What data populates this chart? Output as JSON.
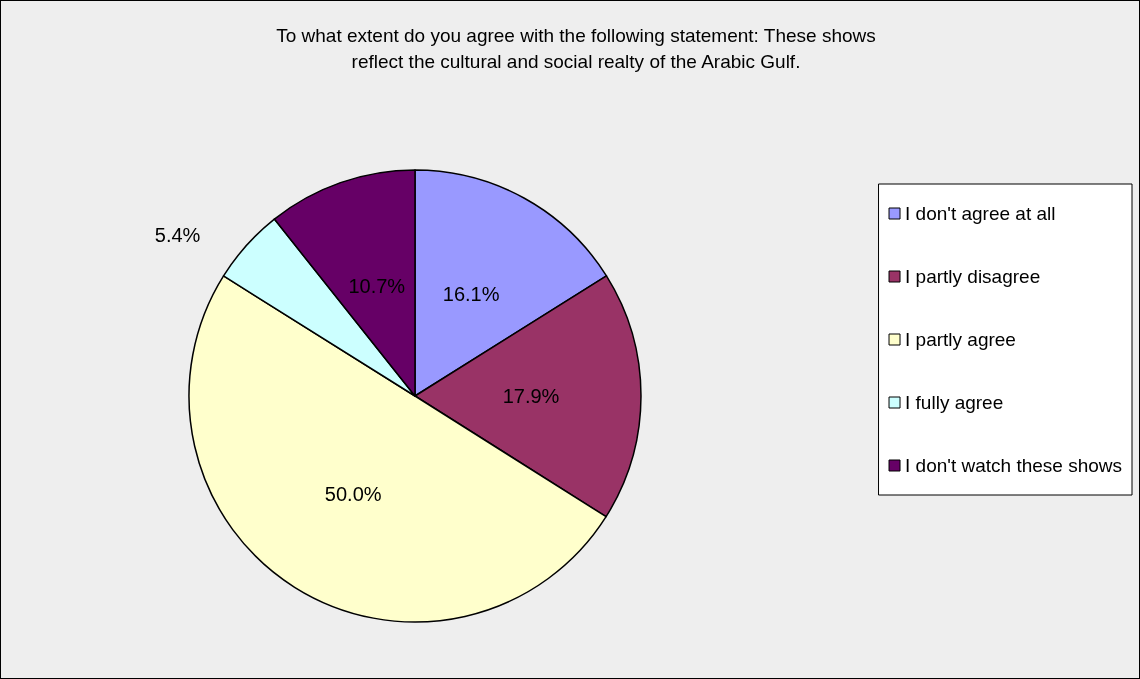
{
  "chart_data": {
    "type": "pie",
    "title": "To what extent do you agree with the following statement: These shows\nreflect the cultural and social realty of the Arabic Gulf.",
    "categories": [
      "I don't agree at all",
      "I partly disagree",
      "I partly agree",
      "I fully agree",
      "I don't watch these shows"
    ],
    "values": [
      16.1,
      17.9,
      50.0,
      5.4,
      10.7
    ],
    "value_labels": [
      "16.1%",
      "17.9%",
      "50.0%",
      "5.4%",
      "10.7%"
    ],
    "colors": [
      "#9999ff",
      "#993366",
      "#ffffcc",
      "#ccffff",
      "#660066"
    ],
    "legend": "right"
  }
}
